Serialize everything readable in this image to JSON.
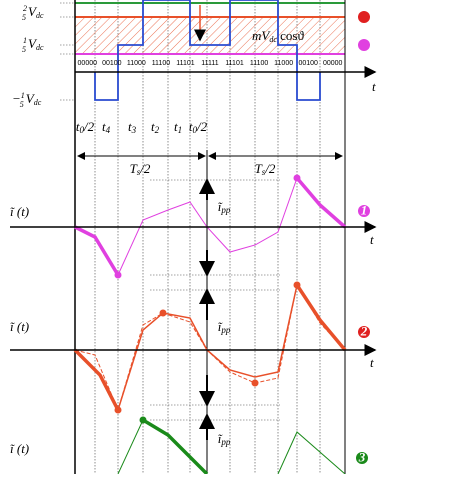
{
  "levels": {
    "upper": {
      "num": "2",
      "den": "5",
      "sym": "V",
      "sub": "dc"
    },
    "lower": {
      "num": "1",
      "den": "5",
      "sym": "V",
      "sub": "dc"
    },
    "negative": {
      "sign": "−",
      "num": "1",
      "den": "5",
      "sym": "V",
      "sub": "dc"
    }
  },
  "reference": {
    "pre": "mV",
    "sub": "dc",
    "post": " cosϑ"
  },
  "states": [
    "00000",
    "00100",
    "11000",
    "11100",
    "11101",
    "11111",
    "11101",
    "11100",
    "11000",
    "00100",
    "00000"
  ],
  "axis_label": "t",
  "times": [
    {
      "base": "t",
      "sub": "0",
      "post": "/2"
    },
    {
      "base": "t",
      "sub": "4",
      "post": ""
    },
    {
      "base": "t",
      "sub": "3",
      "post": ""
    },
    {
      "base": "t",
      "sub": "2",
      "post": ""
    },
    {
      "base": "t",
      "sub": "1",
      "post": ""
    },
    {
      "base": "t",
      "sub": "0",
      "post": "/2"
    }
  ],
  "half_periods": [
    {
      "base": "T",
      "sub": "s",
      "post": "/2"
    },
    {
      "base": "T",
      "sub": "s",
      "post": "/2"
    }
  ],
  "panels": [
    {
      "ylabel": "ĩ (t)",
      "ripple": {
        "base": "ĩ",
        "sub": "pp"
      },
      "badge": "1"
    },
    {
      "ylabel": "ĩ (t)",
      "ripple": {
        "base": "ĩ",
        "sub": "pp"
      },
      "badge": "2"
    },
    {
      "ylabel": "ĩ (t)",
      "ripple": {
        "base": "ĩ",
        "sub": "pp"
      },
      "badge": "3"
    }
  ]
}
